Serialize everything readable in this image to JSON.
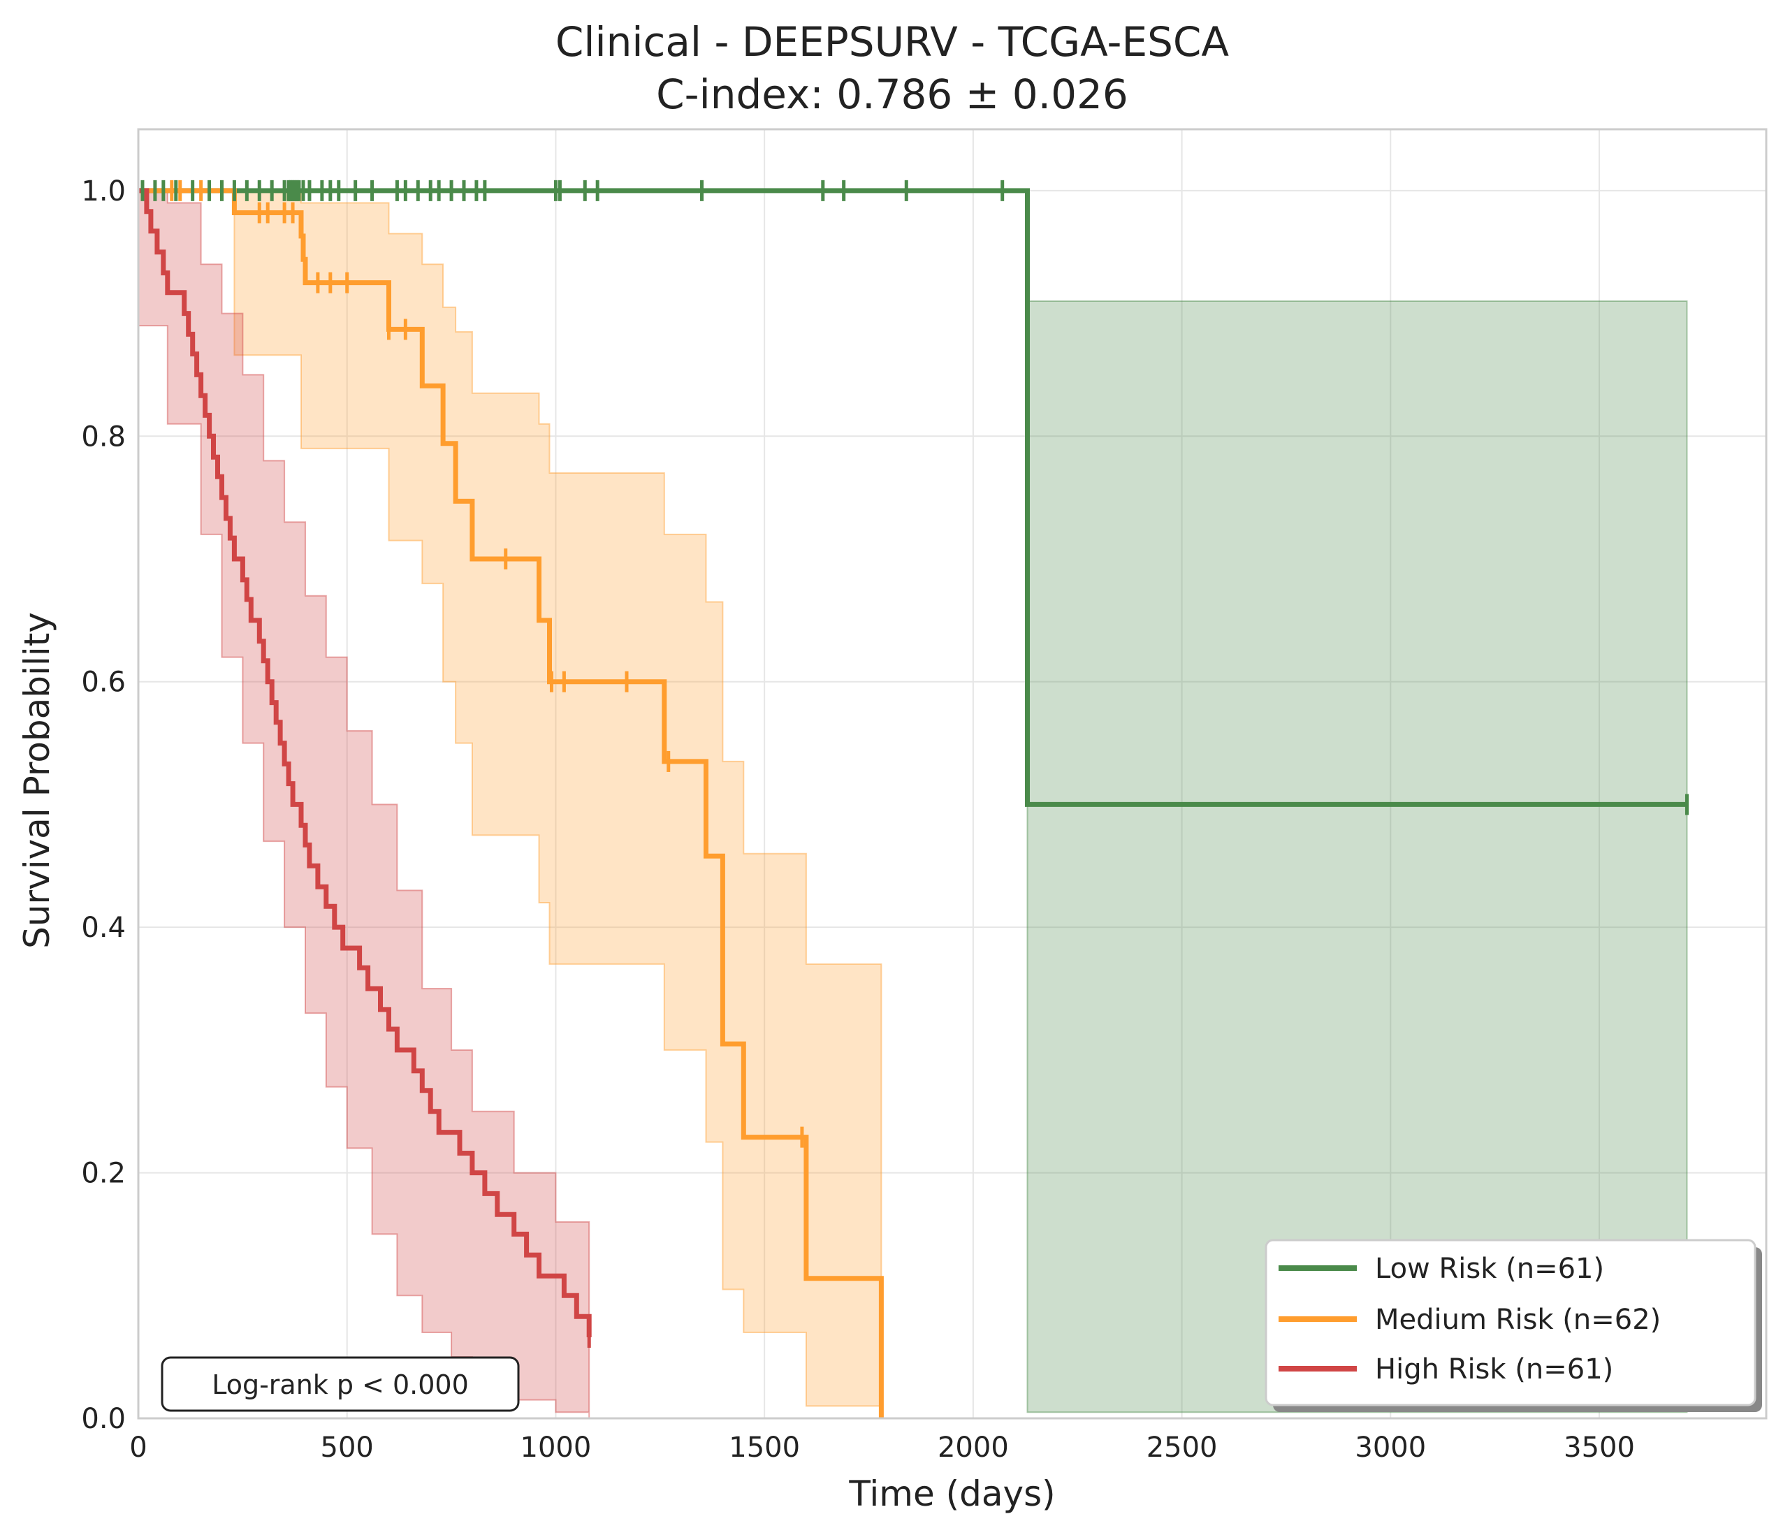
{
  "chart_data": {
    "type": "line",
    "subtype": "kaplan-meier",
    "title": "Clinical - DEEPSURV - TCGA-ESCA",
    "subtitle": "C-index: 0.786 ± 0.026",
    "xlabel": "Time (days)",
    "ylabel": "Survival Probability",
    "xlim": [
      0,
      3900
    ],
    "ylim": [
      0,
      1.05
    ],
    "xticks": [
      0,
      500,
      1000,
      1500,
      2000,
      2500,
      3000,
      3500
    ],
    "yticks": [
      0.0,
      0.2,
      0.4,
      0.6,
      0.8,
      1.0
    ],
    "xtick_labels": [
      "0",
      "500",
      "1000",
      "1500",
      "2000",
      "2500",
      "3000",
      "3500"
    ],
    "ytick_labels": [
      "0.0",
      "0.2",
      "0.4",
      "0.6",
      "0.8",
      "1.0"
    ],
    "grid": true,
    "legend_position": "bottom-right",
    "annotation": "Log-rank p < 0.000",
    "series": [
      {
        "name": "Low Risk (n=61)",
        "color": "#4a8a4a",
        "steps": [
          [
            0,
            1.0
          ],
          [
            2130,
            0.5
          ],
          [
            3710,
            0.5
          ]
        ],
        "ci": [
          [
            2130,
            0.005,
            0.91
          ],
          [
            3710,
            0.005,
            0.91
          ]
        ],
        "censored": [
          [
            10,
            1
          ],
          [
            40,
            1
          ],
          [
            60,
            1
          ],
          [
            90,
            1
          ],
          [
            130,
            1
          ],
          [
            170,
            1
          ],
          [
            200,
            1
          ],
          [
            230,
            1
          ],
          [
            260,
            1
          ],
          [
            290,
            1
          ],
          [
            320,
            1
          ],
          [
            350,
            1
          ],
          [
            360,
            1
          ],
          [
            365,
            1
          ],
          [
            370,
            1
          ],
          [
            375,
            1
          ],
          [
            380,
            1
          ],
          [
            385,
            1
          ],
          [
            395,
            1
          ],
          [
            410,
            1
          ],
          [
            440,
            1
          ],
          [
            460,
            1
          ],
          [
            480,
            1
          ],
          [
            520,
            1
          ],
          [
            560,
            1
          ],
          [
            620,
            1
          ],
          [
            640,
            1
          ],
          [
            670,
            1
          ],
          [
            700,
            1
          ],
          [
            720,
            1
          ],
          [
            750,
            1
          ],
          [
            780,
            1
          ],
          [
            810,
            1
          ],
          [
            830,
            1
          ],
          [
            1000,
            1
          ],
          [
            1010,
            1
          ],
          [
            1070,
            1
          ],
          [
            1100,
            1
          ],
          [
            1350,
            1
          ],
          [
            1640,
            1
          ],
          [
            1690,
            1
          ],
          [
            1840,
            1
          ],
          [
            2070,
            1
          ],
          [
            3710,
            0.5
          ]
        ]
      },
      {
        "name": "Medium Risk (n=62)",
        "color": "#ff9d2e",
        "steps": [
          [
            0,
            1.0
          ],
          [
            230,
            0.982
          ],
          [
            390,
            0.963
          ],
          [
            395,
            0.944
          ],
          [
            400,
            0.925
          ],
          [
            600,
            0.887
          ],
          [
            680,
            0.841
          ],
          [
            730,
            0.794
          ],
          [
            760,
            0.747
          ],
          [
            800,
            0.7
          ],
          [
            960,
            0.65
          ],
          [
            985,
            0.6
          ],
          [
            1260,
            0.535
          ],
          [
            1360,
            0.458
          ],
          [
            1400,
            0.305
          ],
          [
            1450,
            0.229
          ],
          [
            1600,
            0.114
          ],
          [
            1780,
            0.0
          ]
        ],
        "ci": [
          [
            230,
            0.866,
            1.0
          ],
          [
            390,
            0.79,
            0.99
          ],
          [
            600,
            0.715,
            0.965
          ],
          [
            680,
            0.68,
            0.94
          ],
          [
            730,
            0.6,
            0.905
          ],
          [
            760,
            0.55,
            0.885
          ],
          [
            800,
            0.475,
            0.835
          ],
          [
            960,
            0.42,
            0.81
          ],
          [
            985,
            0.37,
            0.77
          ],
          [
            1260,
            0.3,
            0.72
          ],
          [
            1360,
            0.225,
            0.665
          ],
          [
            1400,
            0.105,
            0.535
          ],
          [
            1450,
            0.07,
            0.46
          ],
          [
            1600,
            0.01,
            0.37
          ],
          [
            1780,
            0.0,
            0.37
          ]
        ],
        "censored": [
          [
            80,
            1
          ],
          [
            100,
            1
          ],
          [
            150,
            1
          ],
          [
            290,
            0.982
          ],
          [
            310,
            0.982
          ],
          [
            350,
            0.982
          ],
          [
            370,
            0.982
          ],
          [
            430,
            0.925
          ],
          [
            460,
            0.925
          ],
          [
            500,
            0.925
          ],
          [
            600,
            0.887
          ],
          [
            640,
            0.887
          ],
          [
            880,
            0.7
          ],
          [
            990,
            0.6
          ],
          [
            1020,
            0.6
          ],
          [
            1170,
            0.6
          ],
          [
            1270,
            0.535
          ],
          [
            1590,
            0.229
          ]
        ]
      },
      {
        "name": "High Risk (n=61)",
        "color": "#d04545",
        "steps": [
          [
            0,
            1.0
          ],
          [
            20,
            0.983
          ],
          [
            30,
            0.967
          ],
          [
            45,
            0.95
          ],
          [
            60,
            0.933
          ],
          [
            70,
            0.917
          ],
          [
            90,
            0.917
          ],
          [
            110,
            0.9
          ],
          [
            120,
            0.883
          ],
          [
            130,
            0.867
          ],
          [
            140,
            0.85
          ],
          [
            150,
            0.833
          ],
          [
            160,
            0.817
          ],
          [
            170,
            0.8
          ],
          [
            180,
            0.783
          ],
          [
            190,
            0.767
          ],
          [
            200,
            0.75
          ],
          [
            210,
            0.733
          ],
          [
            220,
            0.717
          ],
          [
            230,
            0.7
          ],
          [
            250,
            0.683
          ],
          [
            260,
            0.667
          ],
          [
            270,
            0.65
          ],
          [
            290,
            0.633
          ],
          [
            300,
            0.617
          ],
          [
            310,
            0.6
          ],
          [
            320,
            0.583
          ],
          [
            330,
            0.567
          ],
          [
            340,
            0.55
          ],
          [
            350,
            0.533
          ],
          [
            360,
            0.517
          ],
          [
            370,
            0.5
          ],
          [
            390,
            0.483
          ],
          [
            400,
            0.467
          ],
          [
            410,
            0.45
          ],
          [
            430,
            0.433
          ],
          [
            450,
            0.417
          ],
          [
            470,
            0.4
          ],
          [
            490,
            0.383
          ],
          [
            530,
            0.367
          ],
          [
            550,
            0.35
          ],
          [
            580,
            0.333
          ],
          [
            600,
            0.317
          ],
          [
            620,
            0.3
          ],
          [
            660,
            0.283
          ],
          [
            680,
            0.267
          ],
          [
            700,
            0.25
          ],
          [
            720,
            0.233
          ],
          [
            770,
            0.216
          ],
          [
            800,
            0.2
          ],
          [
            830,
            0.183
          ],
          [
            860,
            0.166
          ],
          [
            900,
            0.15
          ],
          [
            930,
            0.133
          ],
          [
            960,
            0.116
          ],
          [
            1020,
            0.1
          ],
          [
            1050,
            0.083
          ],
          [
            1080,
            0.066
          ]
        ],
        "ci": [
          [
            0,
            0.89,
            1.0
          ],
          [
            70,
            0.81,
            0.99
          ],
          [
            150,
            0.72,
            0.94
          ],
          [
            200,
            0.62,
            0.9
          ],
          [
            250,
            0.55,
            0.85
          ],
          [
            300,
            0.47,
            0.78
          ],
          [
            350,
            0.4,
            0.73
          ],
          [
            400,
            0.33,
            0.67
          ],
          [
            450,
            0.27,
            0.62
          ],
          [
            500,
            0.22,
            0.56
          ],
          [
            560,
            0.15,
            0.5
          ],
          [
            620,
            0.1,
            0.43
          ],
          [
            680,
            0.07,
            0.35
          ],
          [
            750,
            0.05,
            0.3
          ],
          [
            800,
            0.03,
            0.25
          ],
          [
            900,
            0.015,
            0.2
          ],
          [
            1000,
            0.005,
            0.16
          ],
          [
            1080,
            0.0,
            0.13
          ]
        ],
        "censored": [
          [
            1080,
            0.066
          ]
        ]
      }
    ]
  }
}
